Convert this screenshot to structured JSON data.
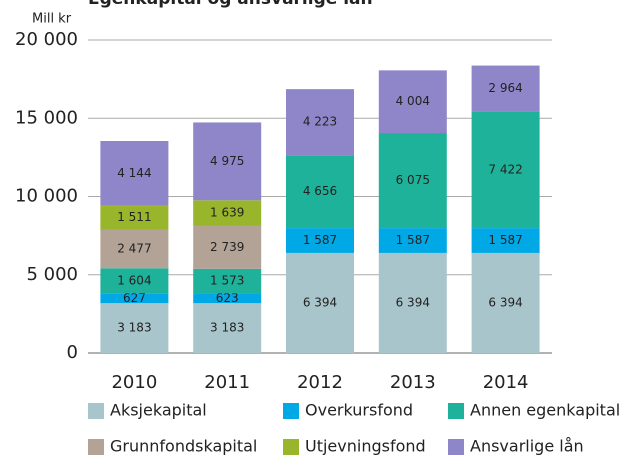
{
  "chart_data": {
    "type": "stacked_bar",
    "title": "Egenkapital og ansvarlige lån",
    "y_label": "Mill kr",
    "categories": [
      "2010",
      "2011",
      "2012",
      "2013",
      "2014"
    ],
    "series": [
      {
        "name": "Aksjekapital",
        "color": "#a9c5cc",
        "values": [
          3183,
          3183,
          6394,
          6394,
          6394
        ],
        "value_labels": [
          "3 183",
          "3 183",
          "6 394",
          "6 394",
          "6 394"
        ]
      },
      {
        "name": "Overkursfond",
        "color": "#00a9e6",
        "values": [
          627,
          623,
          1587,
          1587,
          1587
        ],
        "value_labels": [
          "627",
          "623",
          "1 587",
          "1 587",
          "1 587"
        ]
      },
      {
        "name": "Annen egenkapital",
        "color": "#1fb29a",
        "values": [
          1604,
          1573,
          4656,
          6075,
          7422
        ],
        "value_labels": [
          "1 604",
          "1 573",
          "4 656",
          "6 075",
          "7 422"
        ]
      },
      {
        "name": "Grunnfondskapital",
        "color": "#b3a397",
        "values": [
          2477,
          2739,
          null,
          null,
          null
        ],
        "value_labels": [
          "2 477",
          "2 739",
          null,
          null,
          null
        ]
      },
      {
        "name": "Utjevningsfond",
        "color": "#99b52b",
        "values": [
          1511,
          1639,
          null,
          null,
          null
        ],
        "value_labels": [
          "1 511",
          "1 639",
          null,
          null,
          null
        ]
      },
      {
        "name": "Ansvarlige lån",
        "color": "#8e86c8",
        "values": [
          4144,
          4975,
          4223,
          4004,
          2964
        ],
        "value_labels": [
          "4 144",
          "4 975",
          "4 223",
          "4 004",
          "2 964"
        ]
      }
    ],
    "ylim": [
      0,
      20000
    ],
    "yticks": [
      0,
      {
        "value": 5000,
        "label": "5 000"
      },
      {
        "value": 10000,
        "label": "10 000"
      },
      {
        "value": 15000,
        "label": "15 000"
      },
      {
        "value": 20000,
        "label": "20 000"
      }
    ],
    "grid": true
  }
}
